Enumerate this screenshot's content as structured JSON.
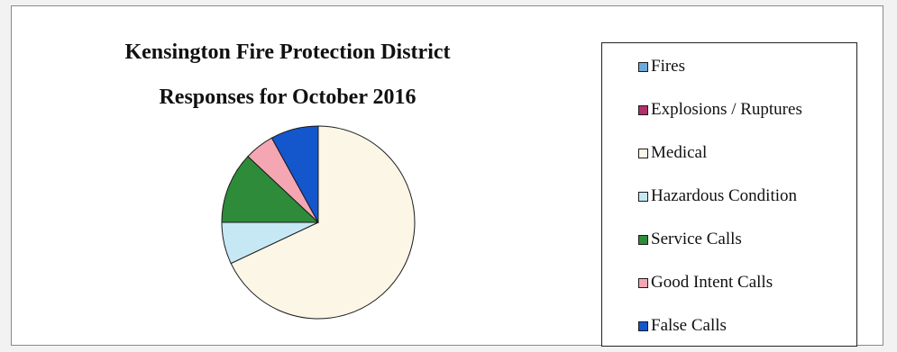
{
  "chart_data": {
    "type": "pie",
    "title": "Kensington Fire Protection District",
    "subtitle": "Responses for October 2016",
    "legend_position": "right",
    "slices": [
      {
        "label": "Fires",
        "value": 0,
        "color": "#6fa8dc"
      },
      {
        "label": "Explosions / Ruptures",
        "value": 0,
        "color": "#b0306a"
      },
      {
        "label": "Medical",
        "value": 68,
        "color": "#fbf6e6"
      },
      {
        "label": "Hazardous Condition",
        "value": 7,
        "color": "#c6e8f5"
      },
      {
        "label": "Service Calls",
        "value": 12,
        "color": "#2e8b3a"
      },
      {
        "label": "Good Intent Calls",
        "value": 5,
        "color": "#f4a7b3"
      },
      {
        "label": "False Calls",
        "value": 8,
        "color": "#1456cc"
      }
    ]
  }
}
